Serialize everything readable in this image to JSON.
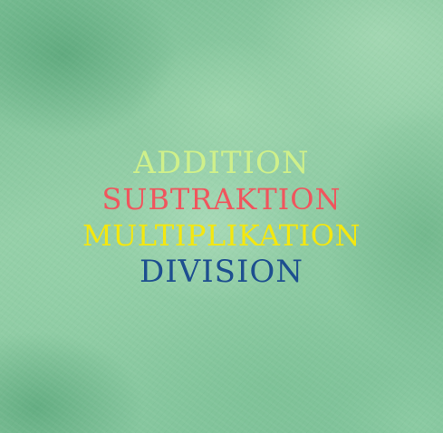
{
  "words": [
    {
      "text": "ADDITION",
      "color": "#cff08a"
    },
    {
      "text": "SUBTRAKTION",
      "color": "#f0555d"
    },
    {
      "text": "MULTIPLIKATION",
      "color": "#f4e70f"
    },
    {
      "text": "DIVISION",
      "color": "#1d4f8f"
    }
  ]
}
